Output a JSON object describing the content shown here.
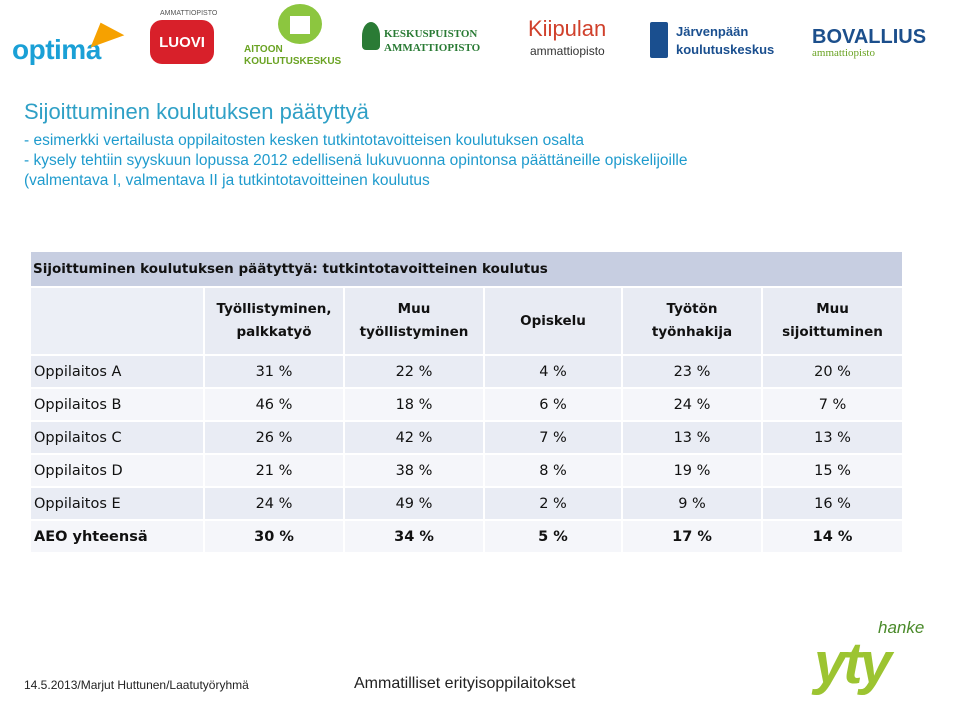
{
  "logos": {
    "optima": "optima",
    "luovi_tag": "AMMATTIOPISTO",
    "luovi": "LUOVI",
    "aitoon_line1": "AITOON",
    "aitoon_line2": "KOULUTUSKESKUS",
    "keskuspuisto_line1": "KESKUSPUISTON",
    "keskuspuisto_line2": "AMMATTIOPISTO",
    "kiipula_line1": "Kiipulan",
    "kiipula_line2": "ammattiopisto",
    "jarvenpaa_line1": "Järvenpään",
    "jarvenpaa_line2": "koulutuskeskus",
    "bovallius_line1": "BOVALLIUS",
    "bovallius_line2": "ammattiopisto"
  },
  "title": "Sijoittuminen koulutuksen päätyttyä",
  "description": [
    "- esimerkki vertailusta oppilaitosten kesken tutkintotavoitteisen koulutuksen osalta",
    "- kysely tehtiin syyskuun lopussa 2012 edellisenä lukuvuonna opintonsa päättäneille opiskelijoille",
    "(valmentava I, valmentava II ja tutkintotavoitteinen koulutus"
  ],
  "table": {
    "caption": "Sijoittuminen koulutuksen päätyttyä: tutkintotavoitteinen koulutus",
    "headers": [
      [
        "Työllistyminen,",
        "palkkatyö"
      ],
      [
        "Muu",
        "työllistyminen"
      ],
      [
        "Opiskelu"
      ],
      [
        "Työtön",
        "työnhakija"
      ],
      [
        "Muu",
        "sijoittuminen"
      ]
    ],
    "rows": [
      {
        "label": "Oppilaitos A",
        "values": [
          "31 %",
          "22 %",
          "4 %",
          "23 %",
          "20 %"
        ]
      },
      {
        "label": "Oppilaitos B",
        "values": [
          "46 %",
          "18 %",
          "6 %",
          "24 %",
          "7 %"
        ]
      },
      {
        "label": "Oppilaitos C",
        "values": [
          "26 %",
          "42 %",
          "7 %",
          "13 %",
          "13 %"
        ]
      },
      {
        "label": "Oppilaitos D",
        "values": [
          "21 %",
          "38 %",
          "8 %",
          "19 %",
          "15 %"
        ]
      },
      {
        "label": "Oppilaitos E",
        "values": [
          "24 %",
          "49 %",
          "2 %",
          "9 %",
          "16 %"
        ]
      },
      {
        "label": "AEO yhteensä",
        "values": [
          "30 %",
          "34 %",
          "5 %",
          "17 %",
          "14 %"
        ]
      }
    ]
  },
  "footer": {
    "left": "14.5.2013/Marjut Huttunen/Laatutyöryhmä",
    "center": "Ammatilliset erityisoppilaitokset",
    "logo_word": "yty",
    "logo_tag": "hanke"
  }
}
